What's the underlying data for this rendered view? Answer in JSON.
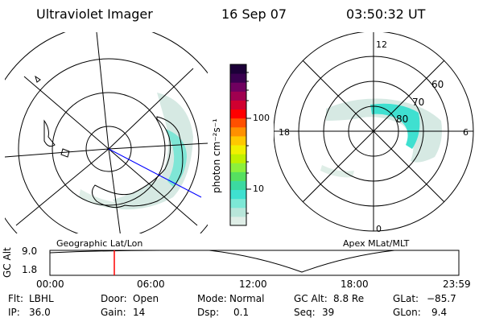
{
  "header": {
    "instrument": "Ultraviolet Imager",
    "date": "16 Sep 07",
    "time": "03:50:32 UT"
  },
  "left_panel": {
    "label": "Geographic Lat/Lon"
  },
  "right_panel": {
    "label": "Apex MLat/MLT",
    "mlt_labels": [
      "12",
      "18",
      "6",
      "0"
    ],
    "mlat_labels": [
      "60",
      "70",
      "80"
    ]
  },
  "colorbar": {
    "unit_label": "photon cm⁻²s⁻¹",
    "ticks": [
      {
        "label": "100",
        "value": 100
      },
      {
        "label": "10",
        "value": 10
      }
    ],
    "colors": [
      "#dfeee7",
      "#b8e6da",
      "#7de8d6",
      "#3fe0d0",
      "#3cd9a0",
      "#56e060",
      "#8cf03c",
      "#c0f000",
      "#f0f000",
      "#ffc800",
      "#ff9000",
      "#ff5000",
      "#ff0000",
      "#d00030",
      "#a00050",
      "#700060",
      "#3a0050",
      "#1c0038"
    ]
  },
  "timeline": {
    "ylabel": "GC Alt",
    "y_ticks": [
      "9.0",
      "1.8"
    ],
    "x_ticks": [
      "00:00",
      "06:00",
      "12:00",
      "18:00",
      "23:59"
    ],
    "marker_time": "03:50",
    "marker_color": "#ff0000"
  },
  "info": {
    "flt_label": "Flt:",
    "flt_value": "LBHL",
    "door_label": "Door:",
    "door_value": "Open",
    "mode_label": "Mode:",
    "mode_value": "Normal",
    "gcalt_label": "GC Alt:",
    "gcalt_value": "8.8 Re",
    "glat_label": "GLat:",
    "glat_value": "−85.7",
    "ip_label": "IP:",
    "ip_value": "36.0",
    "gain_label": "Gain:",
    "gain_value": "14",
    "dsp_label": "Dsp:",
    "dsp_value": "0.1",
    "seq_label": "Seq:",
    "seq_value": "39",
    "glon_label": "GLon:",
    "glon_value": "9.4"
  }
}
